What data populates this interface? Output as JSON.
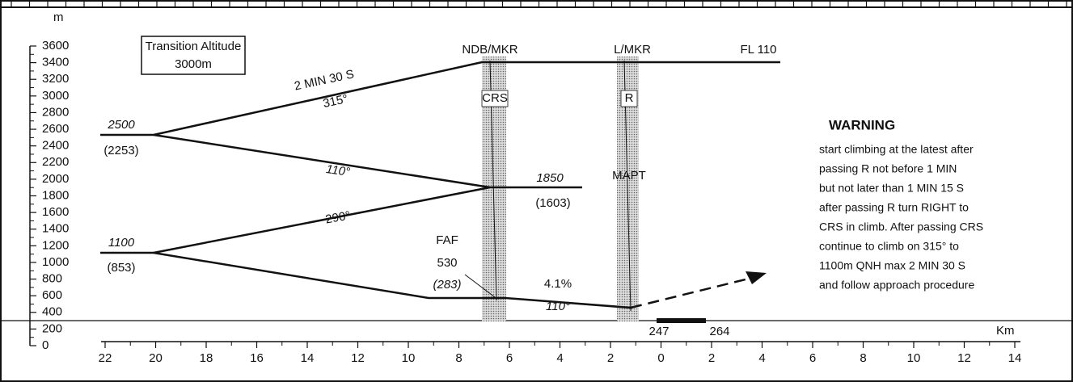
{
  "altitude_unit": "m",
  "altitude_scale": [
    3600,
    3400,
    3200,
    3000,
    2800,
    2600,
    2400,
    2200,
    2000,
    1800,
    1600,
    1400,
    1200,
    1000,
    800,
    600,
    400,
    200,
    0
  ],
  "distance_scale": [
    22,
    20,
    18,
    16,
    14,
    12,
    10,
    8,
    6,
    4,
    2,
    0,
    2,
    4,
    6,
    8,
    10,
    12,
    14
  ],
  "distance_unit": "Km",
  "transition_altitude": {
    "title": "Transition Altitude",
    "value": "3000m"
  },
  "fixes": {
    "ndb": "NDB/MKR",
    "lmkr": "L/MKR",
    "flight_level": "FL 110",
    "crs": "CRS",
    "r": "R",
    "mapt": "MAPT"
  },
  "segments": {
    "climb_time": "2 MIN 30 S",
    "climb_track": "315°",
    "track_110_upper": "110°",
    "track_290": "290°",
    "gradient": "4.1%",
    "track_110_lower": "110°"
  },
  "altitudes": {
    "a2500": "2500",
    "a2500_height": "(2253)",
    "a1850": "1850",
    "a1850_height": "(1603)",
    "a1100": "1100",
    "a1100_height": "(853)"
  },
  "faf": {
    "label": "FAF",
    "altitude": "530",
    "height": "(283)"
  },
  "runway": {
    "start": "247",
    "end": "264"
  },
  "warning": {
    "title": "WARNING",
    "lines": [
      "start climbing at the latest after",
      "passing R not before 1 MIN",
      "but not later than 1 MIN 15 S",
      "after passing R turn RIGHT to",
      "CRS in climb. After passing CRS",
      "continue to climb on 315° to",
      "1100m QNH max 2 MIN 30 S",
      "and follow approach procedure"
    ]
  }
}
